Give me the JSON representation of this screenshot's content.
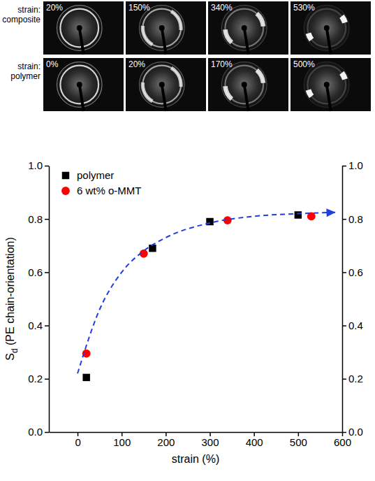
{
  "images": {
    "rows": [
      {
        "label": "strain: composite",
        "panels": [
          "20%",
          "150%",
          "340%",
          "530%"
        ]
      },
      {
        "label": "strain: polymer",
        "panels": [
          "0%",
          "20%",
          "170%",
          "500%"
        ]
      }
    ]
  },
  "chart_data": {
    "type": "scatter",
    "x_label": "strain (%)",
    "y_label": "Sd (PE chain-orientation)",
    "xlim": [
      -65,
      600
    ],
    "xticks": [
      0,
      100,
      200,
      300,
      400,
      500,
      600
    ],
    "ylim": [
      0,
      1
    ],
    "yticks": [
      {
        "value": 0,
        "label": "0.0"
      },
      {
        "value": 0.2,
        "label": "0.2"
      },
      {
        "value": 0.4,
        "label": "0.4"
      },
      {
        "value": 0.6,
        "label": "0.6"
      },
      {
        "value": 0.8,
        "label": "0.8"
      },
      {
        "value": 1,
        "label": "1.0"
      }
    ],
    "y2lim": [
      0,
      1
    ],
    "y2ticks": [
      {
        "value": 0,
        "label": "0.0"
      },
      {
        "value": 0.2,
        "label": "0.2"
      },
      {
        "value": 0.4,
        "label": "0.4"
      },
      {
        "value": 0.6,
        "label": "0.6"
      },
      {
        "value": 0.8,
        "label": "0.8"
      },
      {
        "value": 1,
        "label": "1.0"
      }
    ],
    "legend": "upper left",
    "series": [
      {
        "name": "polymer",
        "color": "#000000",
        "marker": "square",
        "x": [
          20,
          170,
          300,
          500
        ],
        "values": [
          0.205,
          0.69,
          0.79,
          0.815
        ]
      },
      {
        "name": "6 wt% o-MMT",
        "color": "#ff0000",
        "marker": "circle",
        "x": [
          20,
          150,
          340,
          530
        ],
        "values": [
          0.295,
          0.67,
          0.795,
          0.81
        ]
      },
      {
        "type": "line",
        "color": "#1f3fe0",
        "line_style": "dashed",
        "marker": "arrow",
        "x": [
          0,
          50,
          100,
          150,
          200,
          300,
          400,
          500,
          585
        ],
        "values": [
          0.22,
          0.46,
          0.6,
          0.68,
          0.73,
          0.785,
          0.81,
          0.82,
          0.825
        ]
      }
    ]
  }
}
